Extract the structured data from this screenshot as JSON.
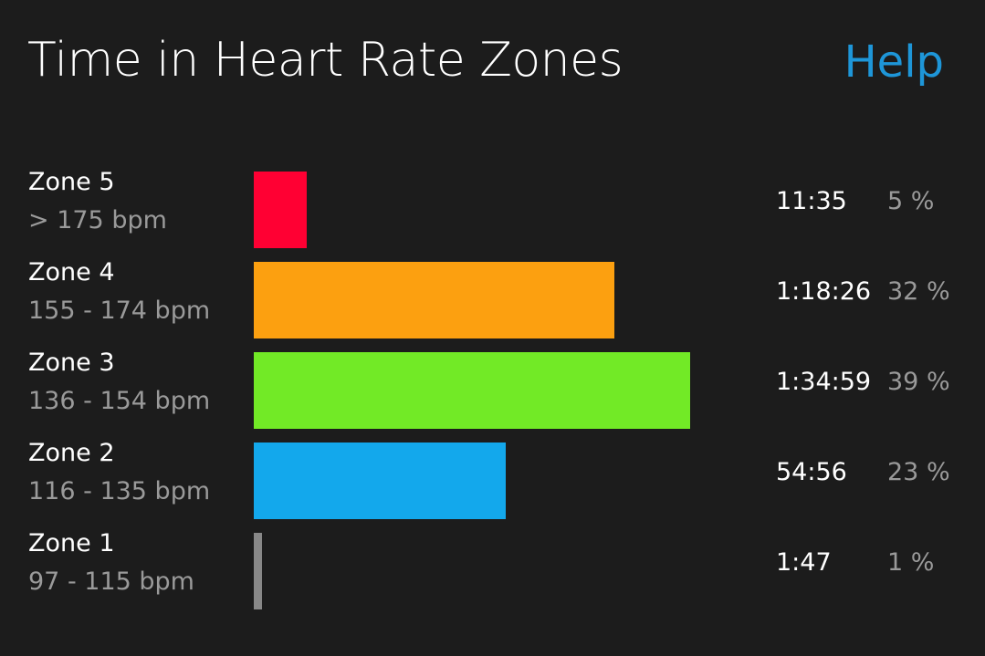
{
  "header": {
    "title": "Time in Heart Rate Zones",
    "help_label": "Help"
  },
  "colors": {
    "background": "#1c1c1c",
    "help_link": "#1e96d8"
  },
  "chart_data": {
    "type": "bar",
    "orientation": "horizontal",
    "title": "Time in Heart Rate Zones",
    "categories": [
      "Zone 5",
      "Zone 4",
      "Zone 3",
      "Zone 2",
      "Zone 1"
    ],
    "ranges": [
      "> 175 bpm",
      "155 - 174 bpm",
      "136 - 154 bpm",
      "116 - 135 bpm",
      "97 - 115 bpm"
    ],
    "times": [
      "11:35",
      "1:18:26",
      "1:34:59",
      "54:56",
      "1:47"
    ],
    "percents": [
      "5 %",
      "32 %",
      "39 %",
      "23 %",
      "1 %"
    ],
    "values_seconds": [
      695,
      4706,
      5699,
      3296,
      107
    ],
    "colors": [
      "#ff0033",
      "#fca010",
      "#72ea26",
      "#13a8ec",
      "#888888"
    ],
    "grid": false,
    "legend": "none"
  }
}
